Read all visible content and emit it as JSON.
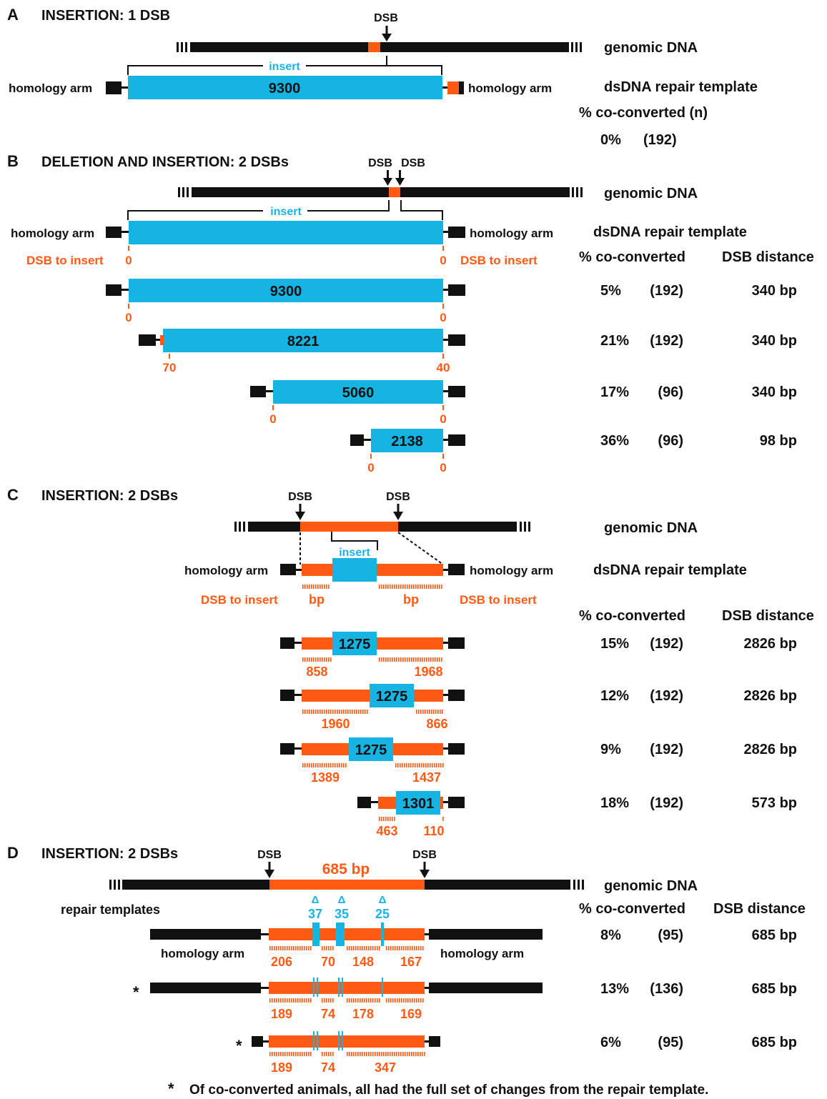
{
  "colors": {
    "black": "#111111",
    "orange": "#ff5a14",
    "cyan": "#16b4e3"
  },
  "labels": {
    "dsb": "DSB",
    "genomic": "genomic DNA",
    "template": "dsDNA repair template",
    "homology_arm": "homology arm",
    "insert": "insert",
    "dsb_to_insert": "DSB to insert",
    "pct_n": "% co-converted (n)",
    "pct": "% co-converted",
    "dsb_distance": "DSB distance",
    "bp": "bp",
    "repair_templates": "repair templates",
    "delta": "Δ",
    "asterisk": "*"
  },
  "panels": {
    "A": {
      "letter": "A",
      "title": "INSERTION: 1 DSB",
      "insert_size": "9300",
      "pct": "0%",
      "n": "(192)"
    },
    "B": {
      "letter": "B",
      "title": "DELETION AND INSERTION: 2 DSBs",
      "header_left": "0",
      "header_right": "0",
      "rows": [
        {
          "size": "9300",
          "left": "0",
          "right": "0",
          "pct": "5%",
          "n": "(192)",
          "dist": "340 bp"
        },
        {
          "size": "8221",
          "left": "70",
          "right": "40",
          "pct": "21%",
          "n": "(192)",
          "dist": "340 bp"
        },
        {
          "size": "5060",
          "left": "0",
          "right": "0",
          "pct": "17%",
          "n": "(96)",
          "dist": "340 bp"
        },
        {
          "size": "2138",
          "left": "0",
          "right": "0",
          "pct": "36%",
          "n": "(96)",
          "dist": "98 bp"
        }
      ]
    },
    "C": {
      "letter": "C",
      "title": "INSERTION: 2 DSBs",
      "rows": [
        {
          "size": "1275",
          "left": "858",
          "right": "1968",
          "pct": "15%",
          "n": "(192)",
          "dist": "2826 bp"
        },
        {
          "size": "1275",
          "left": "1960",
          "right": "866",
          "pct": "12%",
          "n": "(192)",
          "dist": "2826 bp"
        },
        {
          "size": "1275",
          "left": "1389",
          "right": "1437",
          "pct": "9%",
          "n": "(192)",
          "dist": "2826 bp"
        },
        {
          "size": "1301",
          "left": "463",
          "right": "110",
          "pct": "18%",
          "n": "(192)",
          "dist": "573 bp"
        }
      ]
    },
    "D": {
      "letter": "D",
      "title": "INSERTION: 2 DSBs",
      "span": "685 bp",
      "deletions": [
        "37",
        "35",
        "25"
      ],
      "rows": [
        {
          "segments": [
            "206",
            "70",
            "148",
            "167"
          ],
          "pct": "8%",
          "n": "(95)",
          "dist": "685 bp"
        },
        {
          "segments": [
            "189",
            "74",
            "178",
            "169"
          ],
          "pct": "13%",
          "n": "(136)",
          "dist": "685 bp"
        },
        {
          "segments": [
            "189",
            "74",
            "347"
          ],
          "pct": "6%",
          "n": "(95)",
          "dist": "685 bp"
        }
      ]
    }
  },
  "footnote": "Of co-converted animals, all had the full set of changes from the repair template."
}
